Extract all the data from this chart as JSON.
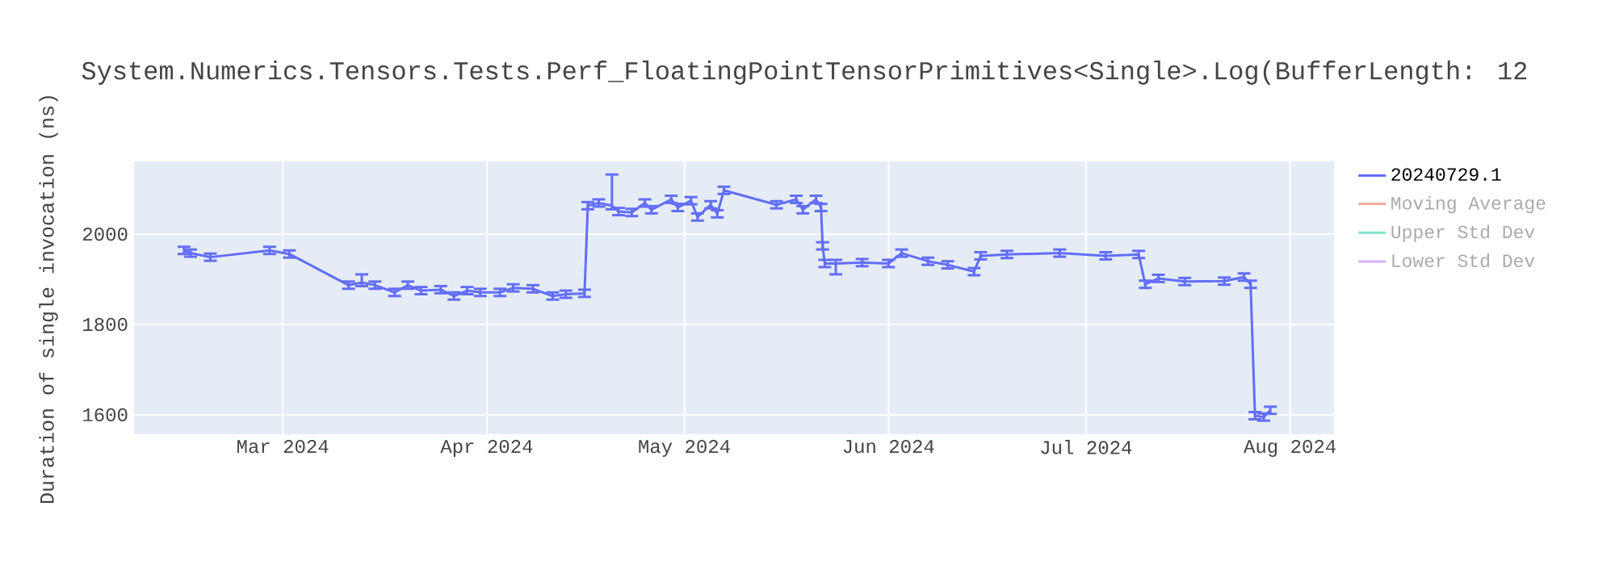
{
  "chart_data": {
    "type": "line",
    "title": "System.Numerics.Tensors.Tests.Perf_FloatingPointTensorPrimitives<Single>.Log(BufferLength: 12",
    "ylabel": "Duration of single invocation (ns)",
    "xlim": [
      "2024-02-07T10:00",
      "2024-08-07T16:00"
    ],
    "ylim": [
      1557,
      2161
    ],
    "xticks": [
      {
        "value": "2024-03-01",
        "label": "Mar 2024"
      },
      {
        "value": "2024-04-01",
        "label": "Apr 2024"
      },
      {
        "value": "2024-05-01",
        "label": "May 2024"
      },
      {
        "value": "2024-06-01",
        "label": "Jun 2024"
      },
      {
        "value": "2024-07-01",
        "label": "Jul 2024"
      },
      {
        "value": "2024-08-01",
        "label": "Aug 2024"
      }
    ],
    "yticks": [
      1600,
      1800,
      2000
    ],
    "grid": true,
    "legend": "top right",
    "series": [
      {
        "name": "20240729.1",
        "color": "#636efa",
        "x": [
          "2024-02-15",
          "2024-02-16",
          "2024-02-19",
          "2024-02-28",
          "2024-03-02",
          "2024-03-11",
          "2024-03-13",
          "2024-03-15",
          "2024-03-18",
          "2024-03-20",
          "2024-03-22",
          "2024-03-25",
          "2024-03-27",
          "2024-03-29",
          "2024-03-31",
          "2024-04-03",
          "2024-04-05",
          "2024-04-08",
          "2024-04-11",
          "2024-04-13",
          "2024-04-15T20:00",
          "2024-04-16T08:00",
          "2024-04-18",
          "2024-04-20",
          "2024-04-21",
          "2024-04-23",
          "2024-04-25",
          "2024-04-26",
          "2024-04-29",
          "2024-04-30",
          "2024-05-02",
          "2024-05-03",
          "2024-05-05",
          "2024-05-06",
          "2024-05-07",
          "2024-05-15",
          "2024-05-18",
          "2024-05-19",
          "2024-05-21",
          "2024-05-21T18:00",
          "2024-05-22",
          "2024-05-22T08:00",
          "2024-05-24",
          "2024-05-28",
          "2024-06-01",
          "2024-06-03",
          "2024-06-07",
          "2024-06-10",
          "2024-06-14",
          "2024-06-15",
          "2024-06-19",
          "2024-06-27",
          "2024-07-04",
          "2024-07-09",
          "2024-07-10",
          "2024-07-12",
          "2024-07-16",
          "2024-07-22",
          "2024-07-25",
          "2024-07-26",
          "2024-07-26T16:00",
          "2024-07-28",
          "2024-07-29"
        ],
        "values": [
          1964,
          1958,
          1949,
          1964,
          1956,
          1887,
          1893,
          1887,
          1871,
          1887,
          1875,
          1877,
          1863,
          1875,
          1871,
          1871,
          1881,
          1879,
          1863,
          1867,
          1869,
          2063,
          2069,
          2063,
          2050,
          2048,
          2069,
          2054,
          2077,
          2059,
          2074,
          2038,
          2065,
          2045,
          2097,
          2065,
          2077,
          2054,
          2077,
          2059,
          1974,
          1935,
          1935,
          1937,
          1935,
          1958,
          1940,
          1932,
          1917,
          1952,
          1955,
          1958,
          1952,
          1955,
          1889,
          1902,
          1895,
          1896,
          1905,
          1889,
          1598,
          1595,
          1610
        ],
        "errors": [
          8,
          8,
          8,
          8,
          8,
          8,
          [
            1885,
            1911
          ],
          8,
          8,
          8,
          8,
          8,
          8,
          8,
          8,
          8,
          8,
          8,
          8,
          8,
          8,
          8,
          8,
          [
            2055,
            2132
          ],
          8,
          8,
          8,
          8,
          8,
          8,
          8,
          8,
          8,
          8,
          8,
          8,
          8,
          8,
          8,
          8,
          8,
          8,
          [
            1911,
            1943
          ],
          8,
          8,
          8,
          8,
          8,
          8,
          8,
          8,
          8,
          8,
          8,
          8,
          8,
          8,
          8,
          8,
          8,
          8,
          8,
          8
        ]
      },
      {
        "name": "Moving Average",
        "color": "#f7aa9d"
      },
      {
        "name": "Upper Std Dev",
        "color": "#80e5cb"
      },
      {
        "name": "Lower Std Dev",
        "color": "#d5b1fc"
      }
    ]
  }
}
